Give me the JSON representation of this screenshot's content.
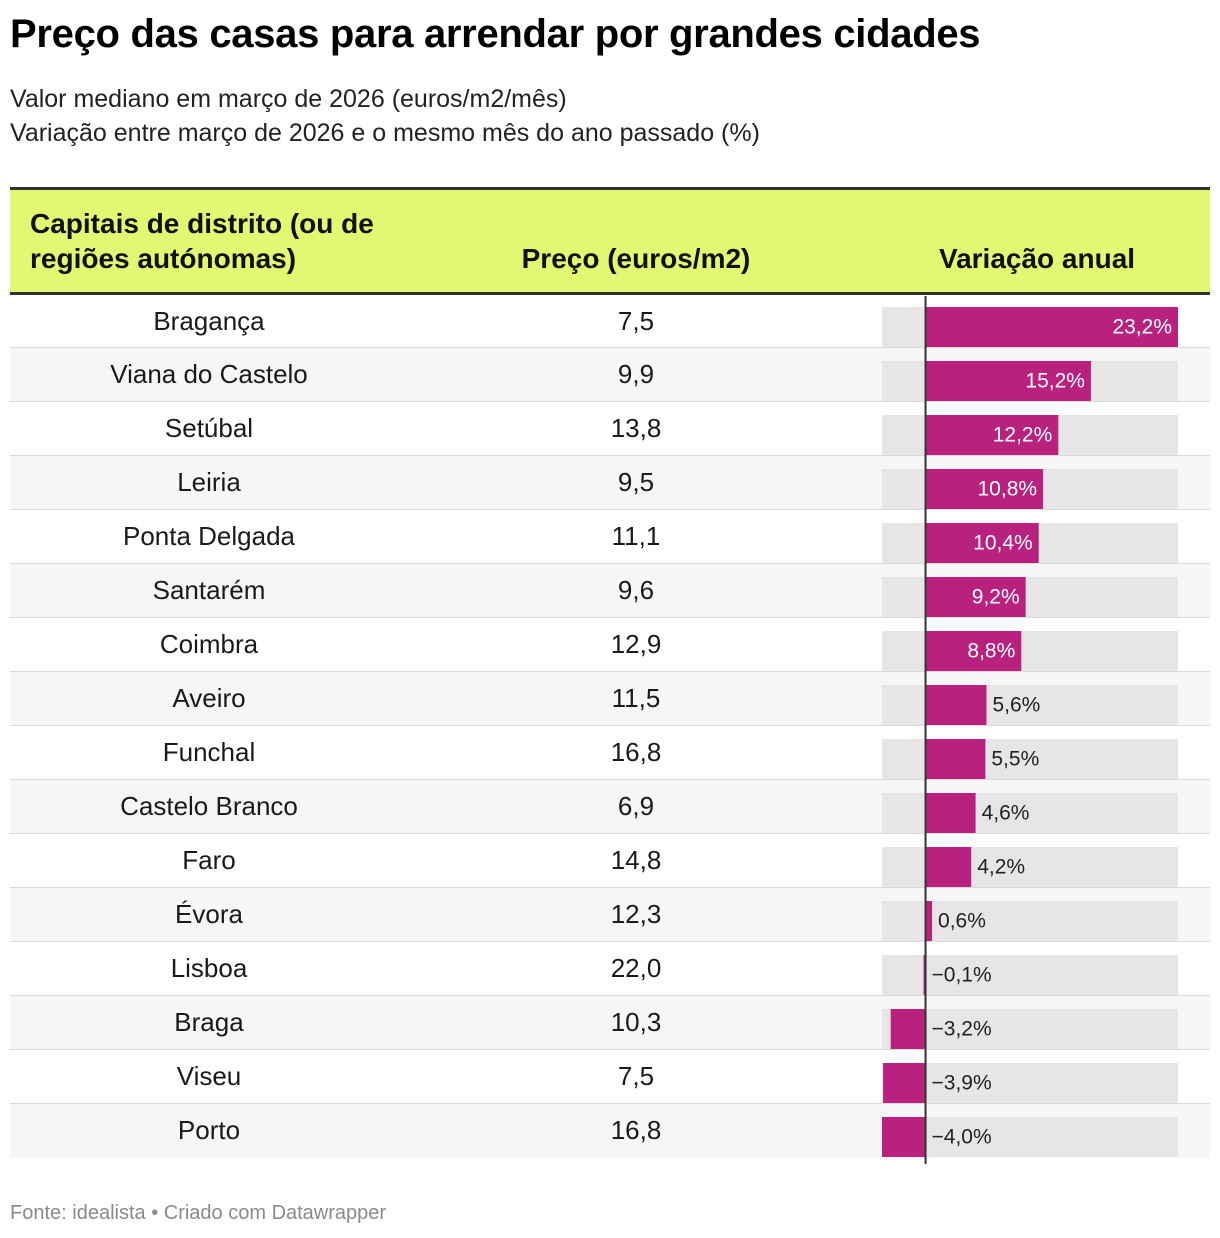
{
  "title": "Preço das casas para arrendar por grandes cidades",
  "subtitle": {
    "line1": "Valor mediano em março de 2026 (euros/m2/mês)",
    "line2": "Variação entre março de 2026 e o mesmo mês do ano passado (%)"
  },
  "columns": {
    "city": "Capitais de distrito (ou de regiões autónomas)",
    "price": "Preço (euros/m2)",
    "variation": "Variação anual"
  },
  "colors": {
    "header_bg": "#e1f872",
    "bar": "#b9217f",
    "bar_track": "#e6e6e6",
    "axis": "#333333"
  },
  "chart_data": {
    "type": "table",
    "columns": [
      "Capitais de distrito (ou de regiões autónomas)",
      "Preço (euros/m2)",
      "Variação anual"
    ],
    "bar_domain": [
      -4.0,
      23.2
    ],
    "rows": [
      {
        "city": "Bragança",
        "price": "7,5",
        "variation": 23.2,
        "variation_label": "23,2%"
      },
      {
        "city": "Viana do Castelo",
        "price": "9,9",
        "variation": 15.2,
        "variation_label": "15,2%"
      },
      {
        "city": "Setúbal",
        "price": "13,8",
        "variation": 12.2,
        "variation_label": "12,2%"
      },
      {
        "city": "Leiria",
        "price": "9,5",
        "variation": 10.8,
        "variation_label": "10,8%"
      },
      {
        "city": "Ponta Delgada",
        "price": "11,1",
        "variation": 10.4,
        "variation_label": "10,4%"
      },
      {
        "city": "Santarém",
        "price": "9,6",
        "variation": 9.2,
        "variation_label": "9,2%"
      },
      {
        "city": "Coimbra",
        "price": "12,9",
        "variation": 8.8,
        "variation_label": "8,8%"
      },
      {
        "city": "Aveiro",
        "price": "11,5",
        "variation": 5.6,
        "variation_label": "5,6%"
      },
      {
        "city": "Funchal",
        "price": "16,8",
        "variation": 5.5,
        "variation_label": "5,5%"
      },
      {
        "city": "Castelo Branco",
        "price": "6,9",
        "variation": 4.6,
        "variation_label": "4,6%"
      },
      {
        "city": "Faro",
        "price": "14,8",
        "variation": 4.2,
        "variation_label": "4,2%"
      },
      {
        "city": "Évora",
        "price": "12,3",
        "variation": 0.6,
        "variation_label": "0,6%"
      },
      {
        "city": "Lisboa",
        "price": "22,0",
        "variation": -0.1,
        "variation_label": "−0,1%"
      },
      {
        "city": "Braga",
        "price": "10,3",
        "variation": -3.2,
        "variation_label": "−3,2%"
      },
      {
        "city": "Viseu",
        "price": "7,5",
        "variation": -3.9,
        "variation_label": "−3,9%"
      },
      {
        "city": "Porto",
        "price": "16,8",
        "variation": -4.0,
        "variation_label": "−4,0%"
      }
    ]
  },
  "footer": "Fonte: idealista • Criado com Datawrapper"
}
